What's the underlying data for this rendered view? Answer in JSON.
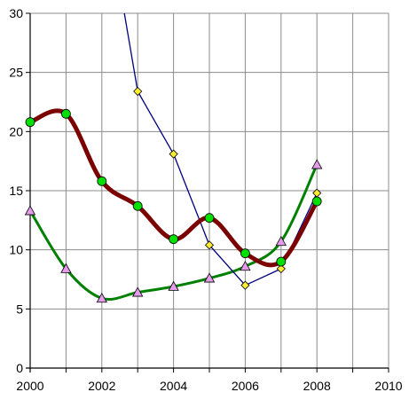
{
  "chart_data": {
    "type": "line",
    "title": "",
    "xlabel": "",
    "ylabel": "",
    "xlim": [
      2000,
      2010
    ],
    "ylim": [
      0,
      30
    ],
    "x_ticks": [
      2000,
      2002,
      2004,
      2006,
      2008,
      2010
    ],
    "y_ticks": [
      0,
      5,
      10,
      15,
      20,
      25,
      30
    ],
    "x_grid_step": 1,
    "grid": true,
    "legend": "none",
    "series": [
      {
        "color": "#7b0000",
        "marker": "circle",
        "marker_color": "#00e000",
        "line_style": "smooth-thick",
        "points": [
          [
            2000,
            20.8
          ],
          [
            2001,
            21.5
          ],
          [
            2002,
            15.8
          ],
          [
            2003,
            13.7
          ],
          [
            2004,
            10.9
          ],
          [
            2005,
            12.7
          ],
          [
            2006,
            9.7
          ],
          [
            2007,
            9.0
          ],
          [
            2008,
            14.1
          ]
        ]
      },
      {
        "color": "#000080",
        "marker": "diamond",
        "marker_color": "#ffee33",
        "line_style": "straight-thin",
        "points": [
          [
            2002.6,
            30.5
          ],
          [
            2003,
            23.4
          ],
          [
            2004,
            18.1
          ],
          [
            2005,
            10.4
          ],
          [
            2006,
            7.0
          ],
          [
            2007,
            8.4
          ],
          [
            2008,
            14.8
          ]
        ]
      },
      {
        "color": "#008000",
        "marker": "triangle",
        "marker_color": "#e49be9",
        "line_style": "smooth-medium",
        "points": [
          [
            2000,
            13.3
          ],
          [
            2001,
            8.4
          ],
          [
            2002,
            5.9
          ],
          [
            2003,
            6.4
          ],
          [
            2004,
            6.9
          ],
          [
            2005,
            7.6
          ],
          [
            2006,
            8.6
          ],
          [
            2007,
            10.7
          ],
          [
            2008,
            17.2
          ]
        ]
      }
    ]
  }
}
